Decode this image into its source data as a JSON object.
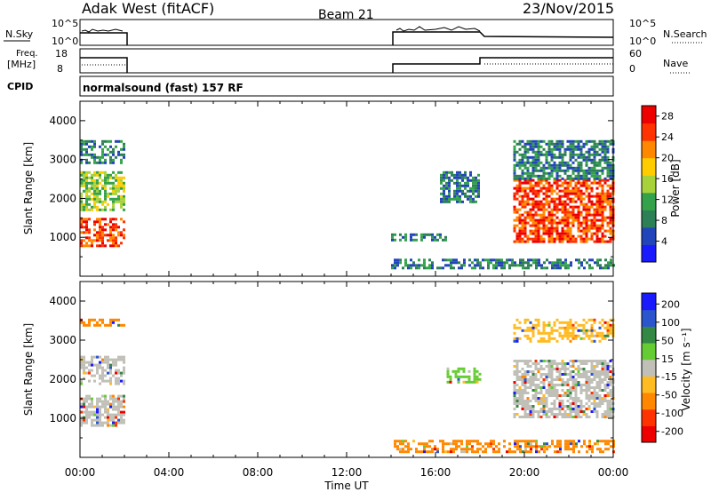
{
  "header": {
    "station": "Adak West (fitACF)",
    "beam": "Beam 21",
    "date": "23/Nov/2015"
  },
  "strips": {
    "nsky": {
      "label": "N.Sky",
      "tick_top": "10^5",
      "tick_bottom": "10^0",
      "right_label": "N.Search",
      "right_tick_top": "10^5",
      "right_tick_bottom": "10^0"
    },
    "freq": {
      "label_line1": "Freq.",
      "label_line2": "[MHz]",
      "tick_top": "18",
      "tick_bottom": "8",
      "right_label": "Nave",
      "right_tick_top": "60",
      "right_tick_bottom": "0"
    },
    "cpid": {
      "label": "CPID",
      "text": "normalsound (fast) 157 RF"
    }
  },
  "chart_data": [
    {
      "type": "heatmap",
      "title": "",
      "xlabel": "",
      "ylabel": "Slant Range [km]",
      "xlim": [
        0,
        24
      ],
      "ylim": [
        0,
        4500
      ],
      "yticks": [
        1000,
        2000,
        3000,
        4000
      ],
      "colorbar": {
        "label": "Power [dB]",
        "ticks": [
          "4",
          "8",
          "12",
          "16",
          "20",
          "24",
          "28"
        ],
        "range": [
          0,
          30
        ]
      },
      "echo_regions": [
        {
          "t": [
            0.0,
            2.0
          ],
          "range": [
            800,
            1500
          ],
          "level": "26-30 dB"
        },
        {
          "t": [
            0.0,
            2.0
          ],
          "range": [
            1700,
            2700
          ],
          "level": "10-20 dB"
        },
        {
          "t": [
            0.0,
            2.0
          ],
          "range": [
            2900,
            3500
          ],
          "level": "4-12 dB"
        },
        {
          "t": [
            14.0,
            24.0
          ],
          "range": [
            180,
            450
          ],
          "level": "4-16 dB"
        },
        {
          "t": [
            14.0,
            16.5
          ],
          "range": [
            950,
            1100
          ],
          "level": "4-10 dB"
        },
        {
          "t": [
            16.2,
            18.0
          ],
          "range": [
            1900,
            2700
          ],
          "level": "4-10 dB"
        },
        {
          "t": [
            19.5,
            24.0
          ],
          "range": [
            900,
            2500
          ],
          "level": "20-30 dB"
        },
        {
          "t": [
            19.5,
            24.0
          ],
          "range": [
            2500,
            3500
          ],
          "level": "4-12 dB"
        }
      ]
    },
    {
      "type": "heatmap",
      "title": "",
      "xlabel": "Time UT",
      "ylabel": "Slant Range [km]",
      "xlim": [
        0,
        24
      ],
      "ylim": [
        0,
        4500
      ],
      "yticks": [
        1000,
        2000,
        3000,
        4000
      ],
      "xticks": [
        "00:00",
        "04:00",
        "08:00",
        "12:00",
        "16:00",
        "20:00",
        "00:00"
      ],
      "colorbar": {
        "label": "Velocity [m s⁻¹]",
        "ticks": [
          "200",
          "100",
          "50",
          "15",
          "-15",
          "-50",
          "-100",
          "-200"
        ],
        "range": [
          -250,
          250
        ]
      },
      "echo_regions": [
        {
          "t": [
            0.0,
            2.0
          ],
          "range": [
            800,
            1600
          ],
          "level": "-15 to 15 m/s"
        },
        {
          "t": [
            0.0,
            2.0
          ],
          "range": [
            1900,
            2600
          ],
          "level": "-15 to 50 m/s"
        },
        {
          "t": [
            0.0,
            2.0
          ],
          "range": [
            3350,
            3550
          ],
          "level": "-100 to -50 m/s"
        },
        {
          "t": [
            14.0,
            24.0
          ],
          "range": [
            150,
            450
          ],
          "level": "-100 to -15 m/s"
        },
        {
          "t": [
            16.5,
            18.0
          ],
          "range": [
            1900,
            2300
          ],
          "level": "15 to 50 m/s"
        },
        {
          "t": [
            19.5,
            24.0
          ],
          "range": [
            1000,
            2500
          ],
          "level": "-15 to 15 m/s"
        },
        {
          "t": [
            19.5,
            24.0
          ],
          "range": [
            3000,
            3550
          ],
          "level": "-50 to -15 m/s"
        }
      ]
    }
  ],
  "colors": {
    "power": [
      "#1a1aff",
      "#2244bb",
      "#2d7f55",
      "#33a24a",
      "#a8d23a",
      "#ffcc00",
      "#ff8800",
      "#ff3300",
      "#ee0000"
    ],
    "velocity": [
      "#1a1aff",
      "#2b55cc",
      "#338844",
      "#66cc33",
      "#c0c0b8",
      "#ffbb22",
      "#ff8800",
      "#ff3300",
      "#ee0000"
    ]
  }
}
